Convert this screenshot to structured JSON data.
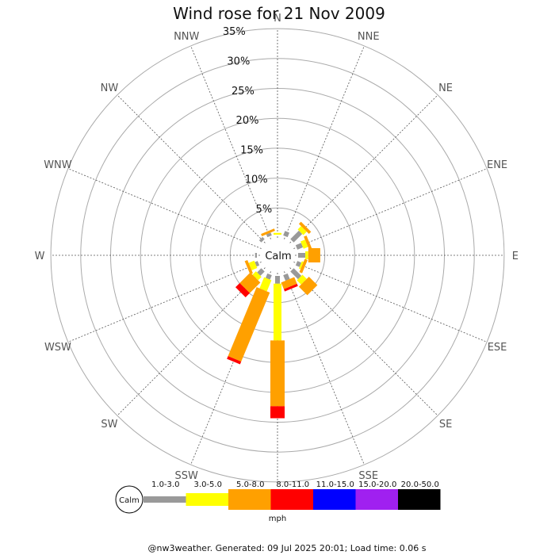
{
  "chart_data": {
    "type": "windrose",
    "title": "Wind rose for 21 Nov 2009",
    "directions": [
      "N",
      "NNE",
      "NE",
      "ENE",
      "E",
      "ESE",
      "SE",
      "SSE",
      "S",
      "SSW",
      "SW",
      "WSW",
      "W",
      "WNW",
      "NW",
      "NNW"
    ],
    "ring_labels": [
      "5%",
      "10%",
      "15%",
      "20%",
      "25%",
      "30%",
      "35%"
    ],
    "rmax_pct": 35,
    "center_label": "Calm",
    "speed_bins": [
      {
        "label": "1.0-3.0",
        "color": "#999999"
      },
      {
        "label": "3.0-5.0",
        "color": "#ffff00"
      },
      {
        "label": "5.0-8.0",
        "color": "#ffa000"
      },
      {
        "label": "8.0-11.0",
        "color": "#ff0000"
      },
      {
        "label": "11.0-15.0",
        "color": "#0000ff"
      },
      {
        "label": "15.0-20.0",
        "color": "#a020f0"
      },
      {
        "label": "20.0-50.0",
        "color": "#000000"
      }
    ],
    "units": "mph",
    "series": [
      {
        "direction": "N",
        "values": [
          0,
          0.3,
          0,
          0,
          0,
          0,
          0
        ]
      },
      {
        "direction": "NNE",
        "values": [
          0.8,
          0,
          0,
          0,
          0,
          0,
          0
        ]
      },
      {
        "direction": "NE",
        "values": [
          2.0,
          0.8,
          0.5,
          0,
          0,
          0,
          0
        ]
      },
      {
        "direction": "ENE",
        "values": [
          1.0,
          0.8,
          0.5,
          0,
          0,
          0,
          0
        ]
      },
      {
        "direction": "E",
        "values": [
          1.2,
          0.5,
          2.0,
          0,
          0,
          0,
          0
        ]
      },
      {
        "direction": "ESE",
        "values": [
          0.7,
          0.3,
          0.5,
          0,
          0,
          0,
          0
        ]
      },
      {
        "direction": "SE",
        "values": [
          1.8,
          1.0,
          2.0,
          0,
          0,
          0,
          0
        ]
      },
      {
        "direction": "SSE",
        "values": [
          1.0,
          0,
          1.2,
          0.4,
          0,
          0,
          0
        ]
      },
      {
        "direction": "S",
        "values": [
          1.3,
          9.5,
          11.0,
          2.0,
          0,
          0,
          0
        ]
      },
      {
        "direction": "SSW",
        "values": [
          0.8,
          2.0,
          12.5,
          0.5,
          0,
          0,
          0
        ]
      },
      {
        "direction": "SW",
        "values": [
          1.0,
          0.8,
          2.5,
          1.0,
          0,
          0,
          0
        ]
      },
      {
        "direction": "WSW",
        "values": [
          0.5,
          1.0,
          0.5,
          0,
          0,
          0,
          0
        ]
      },
      {
        "direction": "W",
        "values": [
          0.3,
          0,
          0,
          0,
          0,
          0,
          0
        ]
      },
      {
        "direction": "WNW",
        "values": [
          0,
          0,
          0,
          0,
          0,
          0,
          0
        ]
      },
      {
        "direction": "NW",
        "values": [
          0.5,
          0,
          0,
          0,
          0,
          0,
          0
        ]
      },
      {
        "direction": "NNW",
        "values": [
          0.5,
          0,
          0.4,
          0,
          0,
          0,
          0
        ]
      }
    ],
    "grid": true,
    "legend_placement": "bottom"
  },
  "footer": "@nw3weather. Generated: 09 Jul 2025 20:01; Load time: 0.06 s"
}
